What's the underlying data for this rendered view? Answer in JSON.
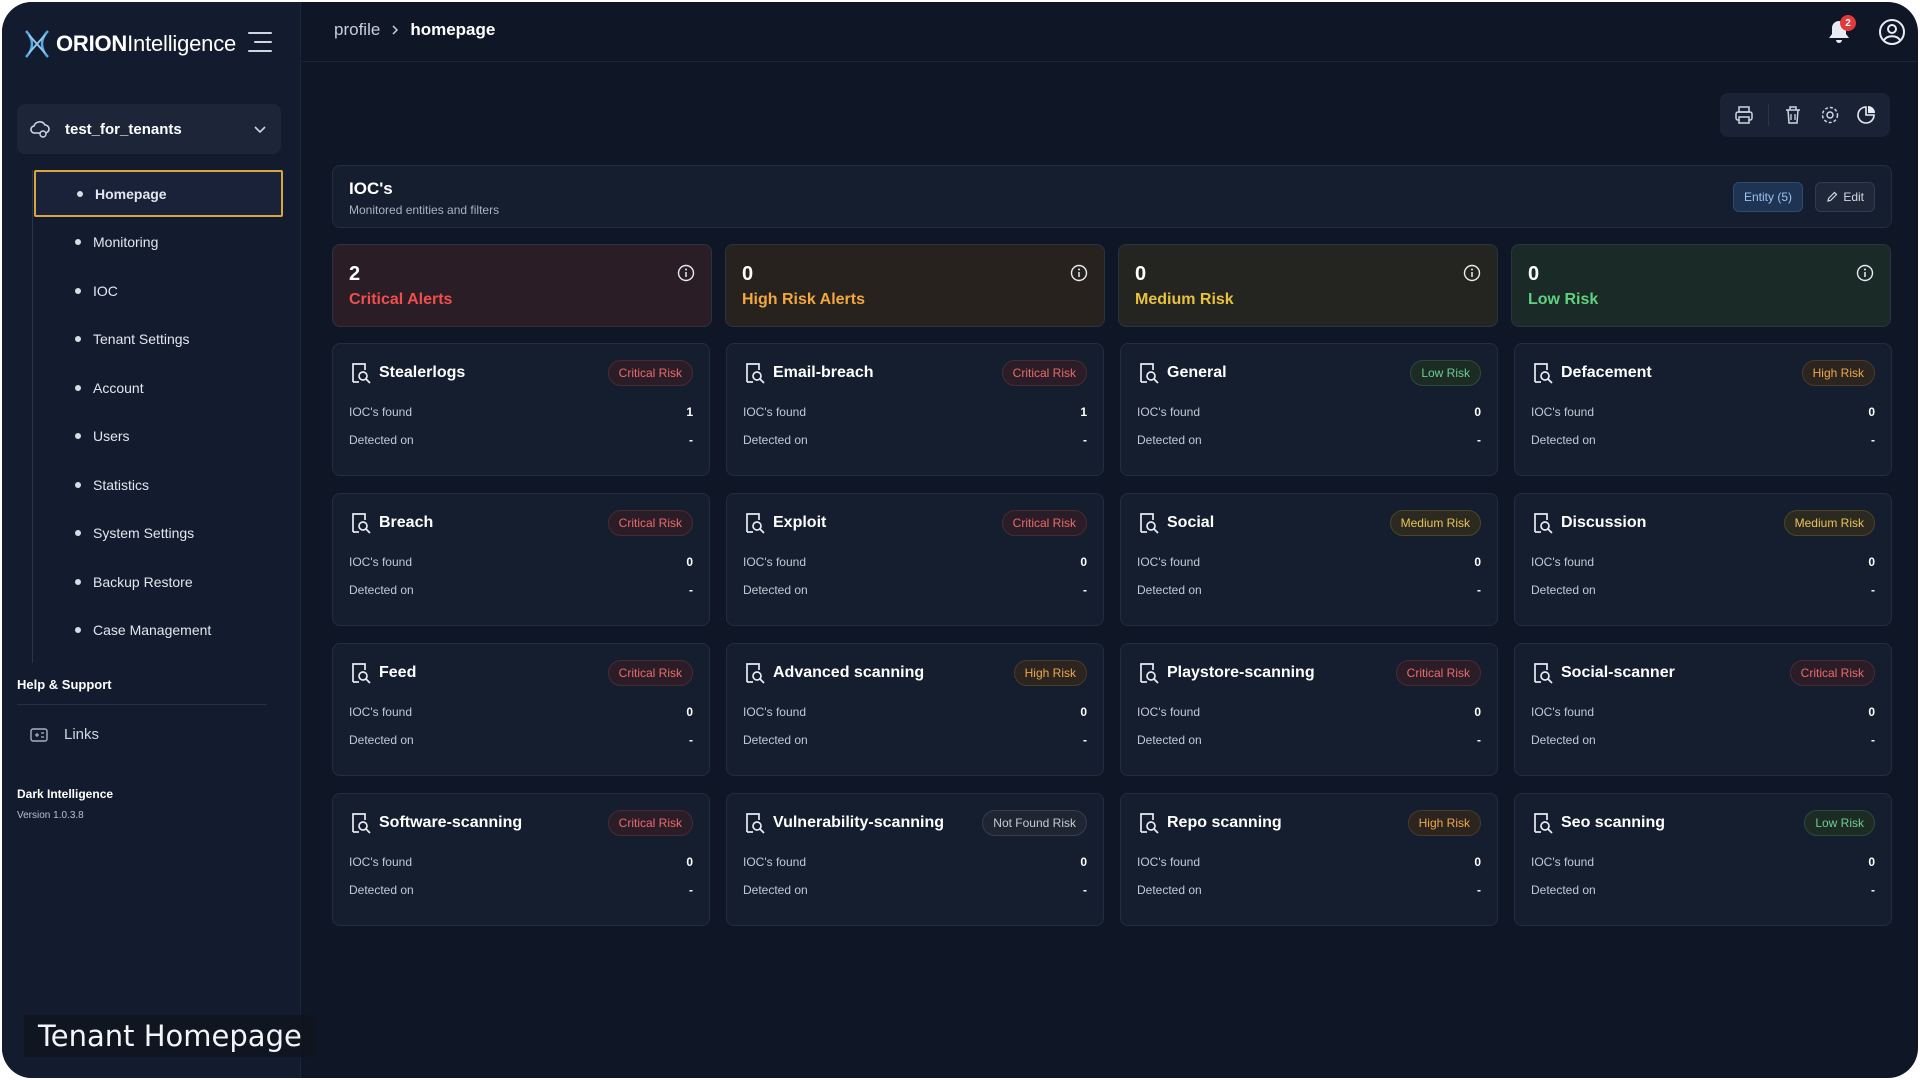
{
  "app": {
    "logo_brand": "ORION",
    "logo_suffix": "Intelligence"
  },
  "tenant": {
    "name": "test_for_tenants"
  },
  "sidebar": {
    "items": [
      {
        "label": "Homepage",
        "active": true
      },
      {
        "label": "Monitoring"
      },
      {
        "label": "IOC"
      },
      {
        "label": "Tenant Settings"
      },
      {
        "label": "Account"
      },
      {
        "label": "Users"
      },
      {
        "label": "Statistics"
      },
      {
        "label": "System Settings"
      },
      {
        "label": "Backup Restore"
      },
      {
        "label": "Case Management"
      }
    ],
    "help_title": "Help & Support",
    "links_label": "Links",
    "brand_name": "Dark Intelligence",
    "version": "Version 1.0.3.8"
  },
  "caption": "Tenant Homepage",
  "breadcrumb": {
    "parent": "profile",
    "current": "homepage"
  },
  "notifications": {
    "count": "2"
  },
  "toolbar": {
    "icons": [
      "printer-icon",
      "trash-icon",
      "settings-icon",
      "pie-chart-icon"
    ]
  },
  "ioc_panel": {
    "title": "IOC's",
    "subtitle": "Monitored entities and filters",
    "entity_button": "Entity (5)",
    "edit_button": "Edit"
  },
  "summary": [
    {
      "value": "2",
      "label": "Critical Alerts",
      "color": "#f24e4e",
      "bg": "#2a1d26"
    },
    {
      "value": "0",
      "label": "High Risk Alerts",
      "color": "#f2a83a",
      "bg": "#28221f"
    },
    {
      "value": "0",
      "label": "Medium Risk",
      "color": "#e8c23e",
      "bg": "#242421"
    },
    {
      "value": "0",
      "label": "Low Risk",
      "color": "#5fd17f",
      "bg": "#1a2a27"
    }
  ],
  "cards_labels": {
    "found": "IOC's found",
    "detected": "Detected on"
  },
  "cards": [
    {
      "name": "Stealerlogs",
      "risk": "Critical Risk",
      "level": "critical",
      "found": "1",
      "detected": "-"
    },
    {
      "name": "Email-breach",
      "risk": "Critical Risk",
      "level": "critical",
      "found": "1",
      "detected": "-"
    },
    {
      "name": "General",
      "risk": "Low Risk",
      "level": "low",
      "found": "0",
      "detected": "-"
    },
    {
      "name": "Defacement",
      "risk": "High Risk",
      "level": "high",
      "found": "0",
      "detected": "-"
    },
    {
      "name": "Breach",
      "risk": "Critical Risk",
      "level": "critical",
      "found": "0",
      "detected": "-"
    },
    {
      "name": "Exploit",
      "risk": "Critical Risk",
      "level": "critical",
      "found": "0",
      "detected": "-"
    },
    {
      "name": "Social",
      "risk": "Medium Risk",
      "level": "medium",
      "found": "0",
      "detected": "-"
    },
    {
      "name": "Discussion",
      "risk": "Medium Risk",
      "level": "medium",
      "found": "0",
      "detected": "-"
    },
    {
      "name": "Feed",
      "risk": "Critical Risk",
      "level": "critical",
      "found": "0",
      "detected": "-"
    },
    {
      "name": "Advanced scanning",
      "risk": "High Risk",
      "level": "high",
      "found": "0",
      "detected": "-"
    },
    {
      "name": "Playstore-scanning",
      "risk": "Critical Risk",
      "level": "critical",
      "found": "0",
      "detected": "-"
    },
    {
      "name": "Social-scanner",
      "risk": "Critical Risk",
      "level": "critical",
      "found": "0",
      "detected": "-"
    },
    {
      "name": "Software-scanning",
      "risk": "Critical Risk",
      "level": "critical",
      "found": "0",
      "detected": "-"
    },
    {
      "name": "Vulnerability-scanning",
      "risk": "Not Found Risk",
      "level": "notfound",
      "found": "0",
      "detected": "-"
    },
    {
      "name": "Repo scanning",
      "risk": "High Risk",
      "level": "high",
      "found": "0",
      "detected": "-"
    },
    {
      "name": "Seo scanning",
      "risk": "Low Risk",
      "level": "low",
      "found": "0",
      "detected": "-"
    }
  ]
}
